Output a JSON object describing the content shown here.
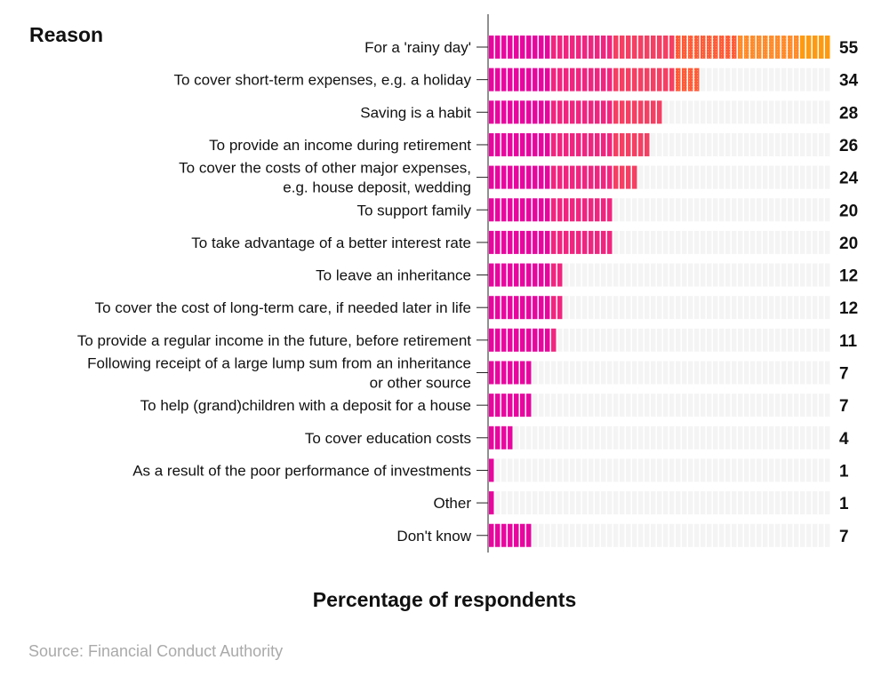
{
  "chart_data": {
    "type": "bar",
    "orientation": "horizontal",
    "ylabel": "Reason",
    "xlabel": "Percentage of respondents",
    "xlim": [
      0,
      55
    ],
    "grid": false,
    "categories": [
      [
        "For a 'rainy day'"
      ],
      [
        "To cover short-term expenses, e.g. a holiday"
      ],
      [
        "Saving is a habit"
      ],
      [
        "To provide an income during retirement"
      ],
      [
        "To cover the costs of other major expenses,",
        "e.g. house deposit, wedding"
      ],
      [
        "To support family"
      ],
      [
        "To take advantage of a better interest rate"
      ],
      [
        "To leave an inheritance"
      ],
      [
        "To cover the cost of long-term care, if needed later in life"
      ],
      [
        "To provide a regular income in the future, before retirement"
      ],
      [
        "Following receipt of a large lump sum from an inheritance",
        "or other source"
      ],
      [
        "To help (grand)children with a deposit for a house"
      ],
      [
        "To cover education costs"
      ],
      [
        "As a result of the poor performance of investments"
      ],
      [
        "Other"
      ],
      [
        "Don't know"
      ]
    ],
    "values": [
      55,
      34,
      28,
      26,
      24,
      20,
      20,
      12,
      12,
      11,
      7,
      7,
      4,
      1,
      1,
      7
    ],
    "band_colors": [
      "#e8069f",
      "#f0257f",
      "#f53f63",
      "#ff5a3a",
      "#ff8a2a",
      "#ff9a10"
    ],
    "track_color": "#f4f4f4"
  },
  "source": "Source: Financial Conduct Authority"
}
